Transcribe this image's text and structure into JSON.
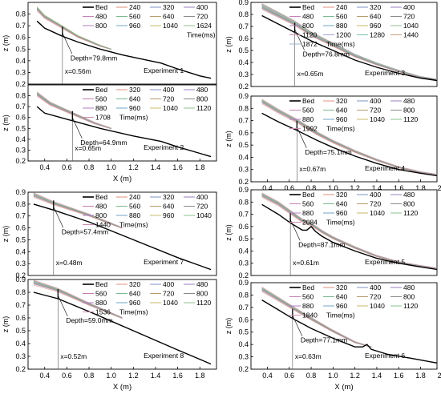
{
  "chart_data": [
    {
      "type": "line",
      "title": "",
      "xlabel": "",
      "ylabel": "z (m)",
      "xlim": [
        0.25,
        1.95
      ],
      "ylim": [
        0.2,
        0.9
      ],
      "xticks": [],
      "yticks": [
        0.2,
        0.3,
        0.4,
        0.5,
        0.6,
        0.7,
        0.8
      ],
      "legend_time_label": "Time(ms)",
      "times": [
        "240",
        "320",
        "400",
        "480",
        "560",
        "640",
        "720",
        "800",
        "960",
        "1040",
        "1624"
      ],
      "bed": {
        "name": "Bed",
        "x": [
          0.33,
          0.4,
          0.56,
          0.7,
          0.9,
          1.1,
          1.3,
          1.45,
          1.6,
          1.8,
          1.9
        ],
        "y": [
          0.74,
          0.68,
          0.61,
          0.56,
          0.5,
          0.45,
          0.41,
          0.38,
          0.33,
          0.27,
          0.25
        ]
      },
      "water": {
        "x": [
          0.33,
          0.4,
          0.56,
          0.7,
          0.9,
          1.0
        ],
        "y": [
          0.85,
          0.78,
          0.69,
          0.61,
          0.53,
          0.5
        ]
      },
      "depth_label": "Depth=79.8mm",
      "location_label": "x=0.56m",
      "location_x": 0.56,
      "experiment": "Experiment 1"
    },
    {
      "type": "line",
      "title": "",
      "xlabel": "X (m)",
      "ylabel": "z (m)",
      "xlim": [
        0.25,
        1.95
      ],
      "ylim": [
        0.2,
        0.9
      ],
      "xticks": [
        0.4,
        0.6,
        0.8,
        1.0,
        1.2,
        1.4,
        1.6,
        1.8
      ],
      "yticks": [
        0.2,
        0.3,
        0.4,
        0.5,
        0.6,
        0.7,
        0.8
      ],
      "legend_time_label": "Time(ms)",
      "times": [
        "320",
        "400",
        "480",
        "560",
        "640",
        "720",
        "800",
        "880",
        "960",
        "1040",
        "1120",
        "1708"
      ],
      "bed": {
        "name": "Bed",
        "x": [
          0.33,
          0.4,
          0.65,
          0.9,
          1.2,
          1.45,
          1.6,
          1.8,
          1.9
        ],
        "y": [
          0.7,
          0.64,
          0.57,
          0.5,
          0.43,
          0.38,
          0.33,
          0.27,
          0.24
        ]
      },
      "water": {
        "x": [
          0.33,
          0.45,
          0.65,
          0.85,
          1.0
        ],
        "y": [
          0.82,
          0.73,
          0.64,
          0.55,
          0.5
        ]
      },
      "depth_label": "Depth=64.9mm",
      "location_label": "x=0.65m",
      "location_x": 0.65,
      "experiment": "Experiment 2"
    },
    {
      "type": "line",
      "title": "",
      "xlabel": "",
      "ylabel": "z (m)",
      "xlim": [
        0.25,
        1.95
      ],
      "ylim": [
        0.2,
        0.9
      ],
      "xticks": [],
      "yticks": [
        0.2,
        0.3,
        0.4,
        0.5,
        0.6,
        0.7,
        0.8,
        0.9
      ],
      "legend_time_label": "Time(ms)",
      "times": [
        "240",
        "320",
        "400",
        "480",
        "560",
        "640",
        "720",
        "800",
        "880",
        "960",
        "1040",
        "1120",
        "1200",
        "1280",
        "1440",
        "1872"
      ],
      "bed": {
        "name": "Bed",
        "x": [
          0.35,
          0.5,
          0.65,
          0.8,
          1.0,
          1.2,
          1.4,
          1.6,
          1.8,
          1.95
        ],
        "y": [
          0.79,
          0.72,
          0.65,
          0.58,
          0.5,
          0.42,
          0.36,
          0.31,
          0.27,
          0.25
        ]
      },
      "water": {
        "x": [
          0.35,
          0.5,
          0.65,
          0.8,
          1.0,
          1.2,
          1.4,
          1.6,
          1.8,
          1.95
        ],
        "y": [
          0.87,
          0.8,
          0.73,
          0.64,
          0.55,
          0.46,
          0.39,
          0.33,
          0.28,
          0.26
        ]
      },
      "depth_label": "Depth=76.8mm",
      "location_label": "x=0.65m",
      "location_x": 0.65,
      "experiment": "Experiment 3"
    },
    {
      "type": "line",
      "title": "",
      "xlabel": "X (m)",
      "ylabel": "z (m)",
      "xlim": [
        0.25,
        1.95
      ],
      "ylim": [
        0.2,
        0.9
      ],
      "xticks": [
        0.4,
        0.6,
        0.8,
        1.0,
        1.2,
        1.4,
        1.6,
        1.8,
        2.0
      ],
      "yticks": [
        0.2,
        0.3,
        0.4,
        0.5,
        0.6,
        0.7,
        0.8,
        0.9
      ],
      "legend_time_label": "Time(ms)",
      "times": [
        "320",
        "400",
        "480",
        "560",
        "640",
        "720",
        "800",
        "880",
        "960",
        "1040",
        "1120",
        "1992"
      ],
      "bed": {
        "name": "Bed",
        "x": [
          0.35,
          0.5,
          0.67,
          0.85,
          1.0,
          1.2,
          1.4,
          1.6,
          1.8,
          1.95
        ],
        "y": [
          0.76,
          0.69,
          0.62,
          0.54,
          0.48,
          0.41,
          0.35,
          0.3,
          0.27,
          0.25
        ]
      },
      "water": {
        "x": [
          0.35,
          0.5,
          0.67,
          0.85,
          1.0,
          1.2,
          1.4,
          1.6,
          1.8,
          1.95
        ],
        "y": [
          0.86,
          0.78,
          0.7,
          0.6,
          0.53,
          0.45,
          0.38,
          0.32,
          0.28,
          0.26
        ]
      },
      "depth_label": "Depth=75.1mm",
      "location_label": "x=0.67m",
      "location_x": 0.67,
      "experiment": "Experiment 4"
    },
    {
      "type": "line",
      "title": "",
      "xlabel": "",
      "ylabel": "z (m)",
      "xlim": [
        0.25,
        1.95
      ],
      "ylim": [
        0.2,
        0.9
      ],
      "xticks": [],
      "yticks": [
        0.2,
        0.3,
        0.4,
        0.5,
        0.6,
        0.7,
        0.8,
        0.9
      ],
      "legend_time_label": "Time(ms)",
      "times": [
        "240",
        "320",
        "400",
        "480",
        "560",
        "640",
        "720",
        "800",
        "880",
        "960",
        "1040",
        "1440"
      ],
      "bed": {
        "name": "Bed",
        "x": [
          0.3,
          0.48,
          0.8,
          1.2,
          1.6,
          1.9
        ],
        "y": [
          0.8,
          0.75,
          0.65,
          0.5,
          0.35,
          0.25
        ]
      },
      "water": {
        "x": [
          0.3,
          0.48,
          0.8,
          1.1
        ],
        "y": [
          0.88,
          0.81,
          0.71,
          0.6
        ]
      },
      "depth_label": "Depth=57.4mm",
      "location_label": "x=0.48m",
      "location_x": 0.48,
      "experiment": "Experiment 7"
    },
    {
      "type": "line",
      "title": "",
      "xlabel": "X (m)",
      "ylabel": "z (m)",
      "xlim": [
        0.25,
        1.95
      ],
      "ylim": [
        0.2,
        0.9
      ],
      "xticks": [
        0.4,
        0.6,
        0.8,
        1.0,
        1.2,
        1.4,
        1.6,
        1.8
      ],
      "yticks": [
        0.2,
        0.3,
        0.4,
        0.5,
        0.6,
        0.7,
        0.8,
        0.9
      ],
      "legend_time_label": "Time(ms)",
      "times": [
        "320",
        "400",
        "480",
        "560",
        "640",
        "720",
        "800",
        "880",
        "960",
        "1040",
        "1120",
        "1536"
      ],
      "bed": {
        "name": "Bed",
        "x": [
          0.3,
          0.52,
          0.8,
          1.2,
          1.6,
          1.9
        ],
        "y": [
          0.8,
          0.75,
          0.65,
          0.5,
          0.35,
          0.24
        ]
      },
      "water": {
        "x": [
          0.3,
          0.52,
          0.8,
          1.1
        ],
        "y": [
          0.88,
          0.82,
          0.71,
          0.6
        ]
      },
      "depth_label": "Depth=59.0mm",
      "location_label": "x=0.52m",
      "location_x": 0.52,
      "experiment": "Experiment 8"
    },
    {
      "type": "line",
      "title": "",
      "xlabel": "",
      "ylabel": "z (m)",
      "xlim": [
        0.25,
        1.95
      ],
      "ylim": [
        0.2,
        0.9
      ],
      "xticks": [],
      "yticks": [
        0.2,
        0.3,
        0.4,
        0.5,
        0.6,
        0.7,
        0.8,
        0.9
      ],
      "legend_time_label": "Time(ms)",
      "times": [
        "320",
        "400",
        "480",
        "560",
        "640",
        "720",
        "800",
        "880",
        "960",
        "1040",
        "1120",
        "2084"
      ],
      "bed": {
        "name": "Bed",
        "x": [
          0.35,
          0.5,
          0.61,
          0.72,
          0.76,
          0.8,
          0.84,
          0.9,
          1.0,
          1.2,
          1.4,
          1.6,
          1.8,
          1.95
        ],
        "y": [
          0.78,
          0.7,
          0.63,
          0.57,
          0.57,
          0.6,
          0.56,
          0.52,
          0.47,
          0.4,
          0.34,
          0.3,
          0.27,
          0.25
        ]
      },
      "water": {
        "x": [
          0.35,
          0.5,
          0.61,
          0.72,
          0.8,
          0.9,
          1.0,
          1.2,
          1.4,
          1.6,
          1.8,
          1.95
        ],
        "y": [
          0.86,
          0.79,
          0.72,
          0.65,
          0.62,
          0.56,
          0.51,
          0.43,
          0.36,
          0.31,
          0.28,
          0.26
        ]
      },
      "depth_label": "Depth=87.1mm",
      "location_label": "x=0.61m",
      "location_x": 0.61,
      "experiment": "Experiment 5"
    },
    {
      "type": "line",
      "title": "",
      "xlabel": "X (m)",
      "ylabel": "z (m)",
      "xlim": [
        0.25,
        1.95
      ],
      "ylim": [
        0.2,
        0.9
      ],
      "xticks": [
        0.4,
        0.6,
        0.8,
        1.0,
        1.2,
        1.4,
        1.6,
        1.8,
        2.0
      ],
      "yticks": [
        0.2,
        0.3,
        0.4,
        0.5,
        0.6,
        0.7,
        0.8,
        0.9
      ],
      "legend_time_label": "Time(ms)",
      "times": [
        "320",
        "400",
        "480",
        "560",
        "640",
        "720",
        "800",
        "880",
        "960",
        "1040",
        "1120",
        "1840"
      ],
      "bed": {
        "name": "Bed",
        "x": [
          0.35,
          0.5,
          0.63,
          0.8,
          1.0,
          1.2,
          1.27,
          1.31,
          1.35,
          1.5,
          1.7,
          1.95
        ],
        "y": [
          0.76,
          0.68,
          0.61,
          0.53,
          0.45,
          0.38,
          0.38,
          0.4,
          0.36,
          0.32,
          0.29,
          0.25
        ]
      },
      "water": {
        "x": [
          0.35,
          0.5,
          0.63,
          0.8,
          1.0,
          1.2,
          1.35
        ],
        "y": [
          0.85,
          0.77,
          0.7,
          0.61,
          0.51,
          0.42,
          0.38
        ]
      },
      "depth_label": "Depth=77.1mm",
      "location_label": "x=0.63m",
      "location_x": 0.63,
      "experiment": "Experiment 6"
    }
  ]
}
